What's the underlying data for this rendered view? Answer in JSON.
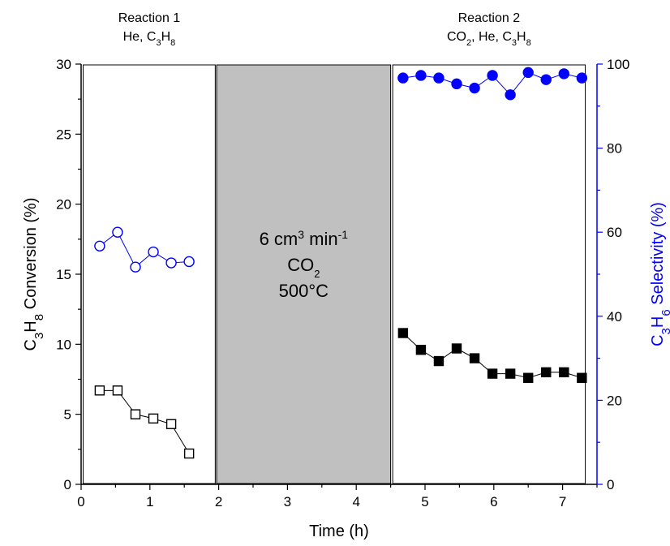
{
  "chart_data": {
    "type": "scatter",
    "x_axis": {
      "label": "Time (h)",
      "range": [
        0,
        7.5
      ],
      "ticks": [
        "0",
        "1",
        "2",
        "3",
        "4",
        "5",
        "6",
        "7"
      ]
    },
    "y_axis_left": {
      "label_parts": [
        "C",
        "3",
        "H",
        "8",
        " Conversion (%)"
      ],
      "range": [
        0,
        30
      ],
      "ticks": [
        "0",
        "5",
        "10",
        "15",
        "20",
        "25",
        "30"
      ],
      "color": "#000000"
    },
    "y_axis_right": {
      "label_parts": [
        "C",
        "3",
        "H",
        "6",
        " Selectivity (%)"
      ],
      "range": [
        0,
        100
      ],
      "ticks": [
        "0",
        "20",
        "40",
        "60",
        "80",
        "100"
      ],
      "color": "#0000ff"
    },
    "panels": [
      {
        "range": [
          0.03,
          1.95
        ],
        "fill": "#ffffff",
        "label_line1": "Reaction 1",
        "label_line2_parts": [
          "He, C",
          "3",
          "H",
          "8"
        ]
      },
      {
        "range": [
          1.97,
          4.5
        ],
        "fill": "#c0c0c0",
        "center_line1_parts": [
          "6 cm",
          "3",
          " min",
          "-1"
        ],
        "center_line2_parts": [
          "CO",
          "2"
        ],
        "center_line3": "500°C"
      },
      {
        "range": [
          4.53,
          7.33
        ],
        "fill": "#ffffff",
        "label_line1": "Reaction 2",
        "label_line2_parts": [
          "CO",
          "2",
          ", He, C",
          "3",
          "H",
          "8"
        ]
      }
    ],
    "series": [
      {
        "axis": "left",
        "marker": "square",
        "filled": false,
        "color": "#000000",
        "connected": true,
        "x": [
          0.27,
          0.53,
          0.79,
          1.05,
          1.31,
          1.57
        ],
        "y": [
          6.7,
          6.7,
          5.0,
          4.7,
          4.3,
          2.2
        ]
      },
      {
        "axis": "right",
        "marker": "circle",
        "filled": false,
        "color": "#0000ff",
        "connected": true,
        "x": [
          0.27,
          0.53,
          0.79,
          1.05,
          1.31,
          1.57
        ],
        "y": [
          56.7,
          60.0,
          51.7,
          55.3,
          52.7,
          53.0
        ]
      },
      {
        "axis": "left",
        "marker": "square",
        "filled": true,
        "color": "#000000",
        "connected": true,
        "x": [
          4.68,
          4.94,
          5.2,
          5.46,
          5.72,
          5.98,
          6.24,
          6.5,
          6.76,
          7.02,
          7.28
        ],
        "y": [
          10.8,
          9.6,
          8.8,
          9.7,
          9.0,
          7.9,
          7.9,
          7.6,
          8.0,
          8.0,
          7.6
        ]
      },
      {
        "axis": "right",
        "marker": "circle",
        "filled": true,
        "color": "#0000ff",
        "connected": true,
        "x": [
          4.68,
          4.94,
          5.2,
          5.46,
          5.72,
          5.98,
          6.24,
          6.5,
          6.76,
          7.02,
          7.28
        ],
        "y": [
          96.7,
          97.3,
          96.7,
          95.3,
          94.3,
          97.3,
          92.7,
          98.0,
          96.3,
          97.7,
          96.7
        ]
      }
    ]
  }
}
